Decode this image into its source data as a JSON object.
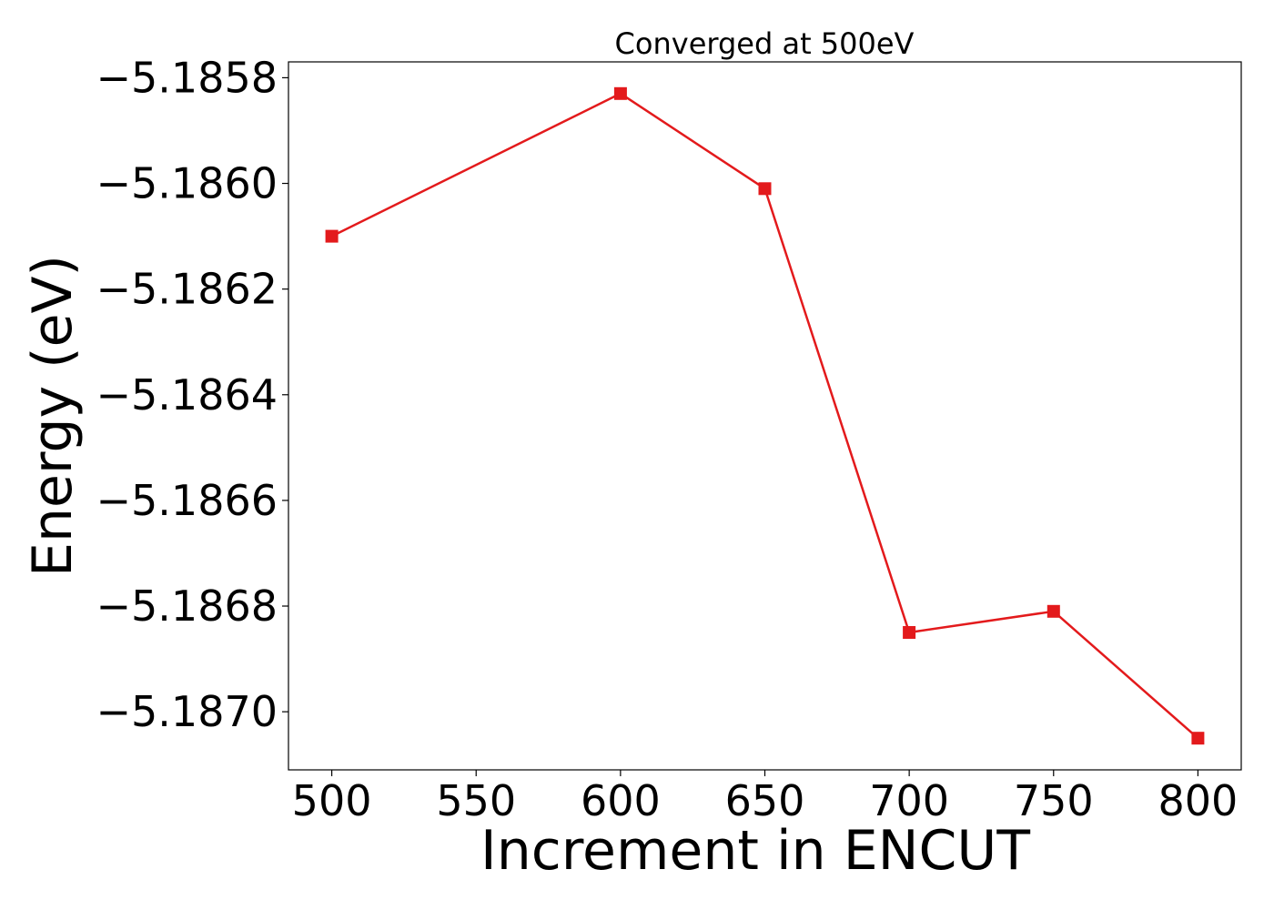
{
  "chart_data": {
    "type": "line",
    "title": "Converged at 500eV",
    "xlabel": "Increment in ENCUT",
    "ylabel": "Energy (eV)",
    "x": [
      500,
      600,
      650,
      700,
      750,
      800
    ],
    "series": [
      {
        "values": [
          -5.1861,
          -5.18583,
          -5.18601,
          -5.18685,
          -5.18681,
          -5.18705
        ],
        "color": "#e31a1c",
        "marker": "square"
      }
    ],
    "xlim": [
      485,
      815
    ],
    "ylim": [
      -5.18711,
      -5.18577
    ],
    "xticks": [
      500,
      550,
      600,
      650,
      700,
      750,
      800
    ],
    "xtick_labels": [
      "500",
      "550",
      "600",
      "650",
      "700",
      "750",
      "800"
    ],
    "yticks": [
      -5.1858,
      -5.186,
      -5.1862,
      -5.1864,
      -5.1866,
      -5.1868,
      -5.187
    ],
    "ytick_labels": [
      "−5.1858",
      "−5.1860",
      "−5.1862",
      "−5.1864",
      "−5.1866",
      "−5.1868",
      "−5.1870"
    ],
    "grid": false,
    "legend": "none"
  }
}
